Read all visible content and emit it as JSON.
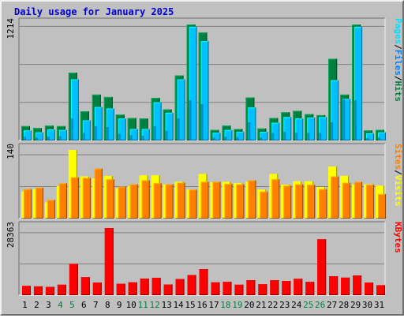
{
  "chart_data": {
    "type": "bar",
    "title": "Daily usage for January 2025",
    "x": [
      "1",
      "2",
      "3",
      "4",
      "5",
      "6",
      "7",
      "8",
      "9",
      "10",
      "11",
      "12",
      "13",
      "14",
      "15",
      "16",
      "17",
      "18",
      "19",
      "20",
      "21",
      "22",
      "23",
      "24",
      "25",
      "26",
      "27",
      "28",
      "29",
      "30",
      "31"
    ],
    "weekend_days": [
      "4",
      "5",
      "11",
      "12",
      "18",
      "19",
      "25",
      "26"
    ],
    "panels": [
      {
        "id": "hits",
        "ymax_label": "1214",
        "ymax": 1214,
        "series": [
          {
            "name": "Hits",
            "color": "#008040",
            "values": [
              150,
              130,
              155,
              150,
              710,
              305,
              480,
              455,
              270,
              235,
              230,
              445,
              325,
              680,
              1214,
              1130,
              110,
              155,
              120,
              450,
              125,
              235,
              295,
              310,
              275,
              265,
              855,
              480,
              1214,
              105,
              110
            ]
          },
          {
            "name": "Files",
            "color": "#00c0ff",
            "values": [
              105,
              85,
              115,
              110,
              640,
              210,
              350,
              335,
              230,
              120,
              120,
              400,
              290,
              640,
              1190,
              1040,
              80,
              110,
              90,
              345,
              90,
              185,
              245,
              230,
              240,
              245,
              630,
              435,
              1190,
              75,
              85
            ]
          },
          {
            "name": "Pages",
            "color": "#00e0ff",
            "values": [
              40,
              30,
              40,
              45,
              230,
              80,
              150,
              140,
              70,
              55,
              50,
              150,
              100,
              230,
              420,
              380,
              30,
              40,
              35,
              190,
              30,
              80,
              90,
              80,
              80,
              80,
              190,
              430,
              420,
              25,
              30
            ]
          }
        ]
      },
      {
        "id": "visits",
        "ymax_label": "140",
        "ymax": 140,
        "series": [
          {
            "name": "Visits",
            "color": "#ffff00",
            "values": [
              55,
              60,
              33,
              66,
              140,
              86,
              82,
              87,
              62,
              66,
              88,
              88,
              70,
              75,
              59,
              91,
              74,
              75,
              72,
              75,
              59,
              91,
              69,
              76,
              76,
              64,
              106,
              87,
              69,
              70,
              67
            ]
          },
          {
            "name": "Sites",
            "color": "#ff8000",
            "values": [
              60,
              63,
              38,
              72,
              84,
              83,
              102,
              80,
              65,
              70,
              78,
              72,
              70,
              73,
              59,
              75,
              75,
              71,
              70,
              78,
              55,
              80,
              67,
              70,
              69,
              60,
              86,
              73,
              75,
              69,
              50
            ]
          }
        ]
      },
      {
        "id": "kbytes",
        "ymax_label": "28363",
        "ymax": 28363,
        "series": [
          {
            "name": "KBytes",
            "color": "#ff0000",
            "values": [
              3900,
              3700,
              3500,
              4400,
              13200,
              7600,
              5300,
              28363,
              4800,
              5400,
              7000,
              7300,
              4500,
              6800,
              8500,
              11000,
              5400,
              5600,
              4400,
              6300,
              4600,
              6300,
              6000,
              6900,
              5600,
              23600,
              8000,
              7400,
              8300,
              5300,
              4200
            ]
          }
        ]
      }
    ],
    "right_labels": [
      {
        "parts": [
          {
            "text": "Pages",
            "color": "#00e0ff"
          },
          {
            "text": "/",
            "color": "#000000"
          },
          {
            "text": "Files",
            "color": "#0080ff"
          },
          {
            "text": "/",
            "color": "#000000"
          },
          {
            "text": "Hits",
            "color": "#008040"
          }
        ]
      },
      {
        "parts": [
          {
            "text": "Sites",
            "color": "#ff8000"
          },
          {
            "text": "/",
            "color": "#000000"
          },
          {
            "text": "Visits",
            "color": "#ffff00"
          }
        ]
      },
      {
        "parts": [
          {
            "text": "KBytes",
            "color": "#ff0000"
          }
        ]
      }
    ],
    "colors": {
      "title": "#0000cc",
      "background": "#c0c0c0",
      "weekday_label": "#000000",
      "weekend_label": "#008040",
      "grid": "#808080"
    }
  }
}
